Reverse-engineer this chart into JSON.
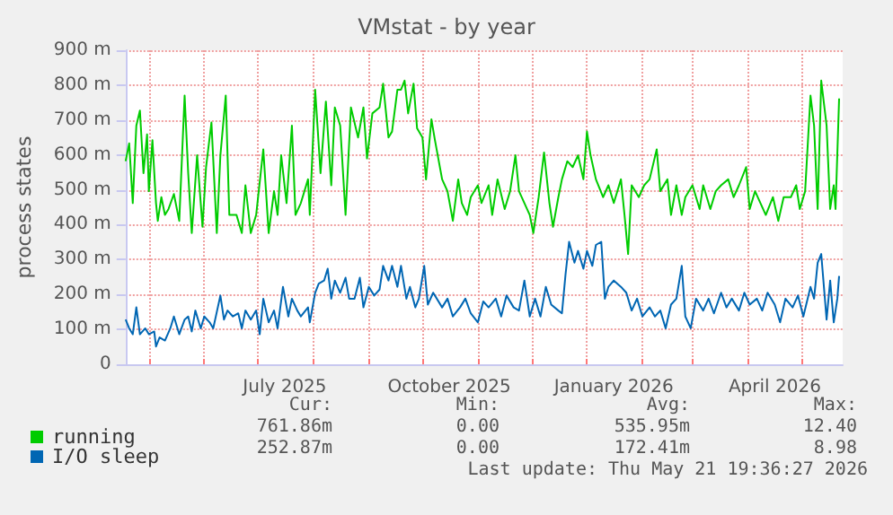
{
  "chart_data": {
    "type": "line",
    "title": "VMstat - by year",
    "ylabel": "process states",
    "xlim": [
      "2025-04-18",
      "2026-05-24"
    ],
    "ylim": [
      0,
      900
    ],
    "yticks": [
      0,
      {
        "value": 100,
        "label": "100 m"
      },
      {
        "value": 200,
        "label": "200 m"
      },
      {
        "value": 300,
        "label": "300 m"
      },
      {
        "value": 400,
        "label": "400 m"
      },
      {
        "value": 500,
        "label": "500 m"
      },
      {
        "value": 600,
        "label": "600 m"
      },
      {
        "value": 700,
        "label": "700 m"
      },
      {
        "value": 800,
        "label": "800 m"
      },
      {
        "value": 900,
        "label": "900 m"
      }
    ],
    "xticks": [
      {
        "value": "2025-05-01",
        "label": null
      },
      {
        "value": "2025-06-01",
        "label": null
      },
      {
        "value": "2025-07-01",
        "label": null
      },
      {
        "value": "2025-07-16",
        "label": "July 2025"
      },
      {
        "value": "2025-08-01",
        "label": null
      },
      {
        "value": "2025-09-01",
        "label": null
      },
      {
        "value": "2025-10-01",
        "label": null
      },
      {
        "value": "2025-10-16",
        "label": "October 2025"
      },
      {
        "value": "2025-11-01",
        "label": null
      },
      {
        "value": "2025-12-01",
        "label": null
      },
      {
        "value": "2026-01-01",
        "label": null
      },
      {
        "value": "2026-01-16",
        "label": "January 2026"
      },
      {
        "value": "2026-02-01",
        "label": null
      },
      {
        "value": "2026-03-01",
        "label": null
      },
      {
        "value": "2026-04-01",
        "label": null
      },
      {
        "value": "2026-04-16",
        "label": "April 2026"
      },
      {
        "value": "2026-05-01",
        "label": null
      }
    ],
    "grid": true,
    "legend": "bottom left",
    "marker": "none",
    "line_style": "solid",
    "annotations": [
      "Cur:",
      "Min:",
      "Avg:",
      "Max:",
      "761.86m",
      "0.00",
      "535.95m",
      "12.40",
      "252.87m",
      "0.00",
      "172.41m",
      "8.98",
      "Last update: Thu May 21 19:36:27 2026"
    ],
    "series": [
      {
        "name": "running",
        "color": "#00cc00",
        "x": [
          "2025-04-18",
          "2025-04-20",
          "2025-04-22",
          "2025-04-24",
          "2025-04-26",
          "2025-04-28",
          "2025-04-30",
          "2025-05-01",
          "2025-05-03",
          "2025-05-05",
          "2025-05-06",
          "2025-05-08",
          "2025-05-10",
          "2025-05-12",
          "2025-05-15",
          "2025-05-18",
          "2025-05-21",
          "2025-05-23",
          "2025-05-25",
          "2025-05-28",
          "2025-05-31",
          "2025-06-02",
          "2025-06-05",
          "2025-06-08",
          "2025-06-10",
          "2025-06-13",
          "2025-06-15",
          "2025-06-19",
          "2025-06-22",
          "2025-06-24",
          "2025-06-27",
          "2025-06-30",
          "2025-07-04",
          "2025-07-07",
          "2025-07-10",
          "2025-07-12",
          "2025-07-14",
          "2025-07-17",
          "2025-07-20",
          "2025-07-22",
          "2025-07-25",
          "2025-07-29",
          "2025-07-30",
          "2025-08-02",
          "2025-08-05",
          "2025-08-08",
          "2025-08-11",
          "2025-08-13",
          "2025-08-16",
          "2025-08-19",
          "2025-08-22",
          "2025-08-26",
          "2025-08-29",
          "2025-08-31",
          "2025-09-03",
          "2025-09-07",
          "2025-09-09",
          "2025-09-12",
          "2025-09-14",
          "2025-09-17",
          "2025-09-19",
          "2025-09-21",
          "2025-09-23",
          "2025-09-26",
          "2025-09-28",
          "2025-10-01",
          "2025-10-03",
          "2025-10-06",
          "2025-10-08",
          "2025-10-12",
          "2025-10-15",
          "2025-10-18",
          "2025-10-21",
          "2025-10-23",
          "2025-10-26",
          "2025-10-28",
          "2025-11-01",
          "2025-11-03",
          "2025-11-07",
          "2025-11-09",
          "2025-11-12",
          "2025-11-16",
          "2025-11-19",
          "2025-11-22",
          "2025-11-24",
          "2025-11-27",
          "2025-11-30",
          "2025-12-02",
          "2025-12-05",
          "2025-12-08",
          "2025-12-11",
          "2025-12-13",
          "2025-12-16",
          "2025-12-18",
          "2025-12-21",
          "2025-12-24",
          "2025-12-27",
          "2025-12-30",
          "2026-01-01",
          "2026-01-03",
          "2026-01-06",
          "2026-01-10",
          "2026-01-13",
          "2026-01-16",
          "2026-01-20",
          "2026-01-22",
          "2026-01-24",
          "2026-01-26",
          "2026-01-30",
          "2026-02-02",
          "2026-02-05",
          "2026-02-09",
          "2026-02-11",
          "2026-02-15",
          "2026-02-17",
          "2026-02-20",
          "2026-02-23",
          "2026-02-25",
          "2026-03-01",
          "2026-03-05",
          "2026-03-07",
          "2026-03-11",
          "2026-03-14",
          "2026-03-17",
          "2026-03-21",
          "2026-03-24",
          "2026-03-27",
          "2026-03-31",
          "2026-04-02",
          "2026-04-05",
          "2026-04-08",
          "2026-04-11",
          "2026-04-15",
          "2026-04-18",
          "2026-04-21",
          "2026-04-25",
          "2026-04-28",
          "2026-04-30",
          "2026-05-03",
          "2026-05-06",
          "2026-05-08",
          "2026-05-10",
          "2026-05-12",
          "2026-05-15",
          "2026-05-17",
          "2026-05-19",
          "2026-05-20",
          "2026-05-22"
        ],
        "values": [
          582,
          633,
          462,
          684,
          727,
          548,
          659,
          496,
          642,
          462,
          411,
          479,
          428,
          445,
          488,
          411,
          770,
          548,
          376,
          599,
          394,
          565,
          693,
          376,
          599,
          770,
          428,
          428,
          376,
          513,
          376,
          428,
          616,
          376,
          496,
          428,
          599,
          462,
          684,
          428,
          462,
          530,
          428,
          787,
          548,
          753,
          513,
          736,
          684,
          428,
          736,
          650,
          736,
          590,
          719,
          736,
          804,
          650,
          667,
          787,
          787,
          813,
          719,
          804,
          676,
          650,
          530,
          702,
          642,
          530,
          496,
          411,
          530,
          462,
          428,
          479,
          513,
          462,
          513,
          428,
          530,
          445,
          496,
          599,
          496,
          462,
          428,
          376,
          479,
          607,
          462,
          394,
          479,
          530,
          582,
          565,
          599,
          530,
          667,
          599,
          530,
          479,
          513,
          462,
          530,
          428,
          316,
          513,
          479,
          513,
          530,
          616,
          496,
          530,
          428,
          513,
          428,
          479,
          513,
          445,
          513,
          445,
          496,
          513,
          530,
          479,
          513,
          565,
          445,
          496,
          462,
          428,
          479,
          411,
          479,
          479,
          513,
          445,
          496,
          770,
          684,
          445,
          813,
          684,
          445,
          513,
          445,
          762
        ]
      },
      {
        "name": "I/O sleep",
        "color": "#0066b3",
        "x": [
          "2025-04-18",
          "2025-04-20",
          "2025-04-22",
          "2025-04-24",
          "2025-04-26",
          "2025-04-29",
          "2025-05-01",
          "2025-05-04",
          "2025-05-05",
          "2025-05-07",
          "2025-05-10",
          "2025-05-13",
          "2025-05-15",
          "2025-05-18",
          "2025-05-21",
          "2025-05-23",
          "2025-05-25",
          "2025-05-27",
          "2025-05-30",
          "2025-06-01",
          "2025-06-04",
          "2025-06-06",
          "2025-06-10",
          "2025-06-12",
          "2025-06-14",
          "2025-06-17",
          "2025-06-20",
          "2025-06-22",
          "2025-06-24",
          "2025-06-27",
          "2025-06-30",
          "2025-07-02",
          "2025-07-04",
          "2025-07-07",
          "2025-07-10",
          "2025-07-12",
          "2025-07-15",
          "2025-07-18",
          "2025-07-20",
          "2025-07-23",
          "2025-07-25",
          "2025-07-29",
          "2025-07-30",
          "2025-08-02",
          "2025-08-04",
          "2025-08-07",
          "2025-08-09",
          "2025-08-11",
          "2025-08-13",
          "2025-08-16",
          "2025-08-19",
          "2025-08-21",
          "2025-08-24",
          "2025-08-27",
          "2025-08-29",
          "2025-09-01",
          "2025-09-04",
          "2025-09-07",
          "2025-09-09",
          "2025-09-12",
          "2025-09-14",
          "2025-09-17",
          "2025-09-19",
          "2025-09-22",
          "2025-09-24",
          "2025-09-27",
          "2025-09-29",
          "2025-10-02",
          "2025-10-04",
          "2025-10-07",
          "2025-10-12",
          "2025-10-15",
          "2025-10-18",
          "2025-10-22",
          "2025-10-25",
          "2025-10-28",
          "2025-11-01",
          "2025-11-04",
          "2025-11-07",
          "2025-11-11",
          "2025-11-14",
          "2025-11-17",
          "2025-11-21",
          "2025-11-24",
          "2025-11-27",
          "2025-11-30",
          "2025-12-03",
          "2025-12-06",
          "2025-12-09",
          "2025-12-12",
          "2025-12-16",
          "2025-12-18",
          "2025-12-20",
          "2025-12-22",
          "2025-12-25",
          "2025-12-27",
          "2025-12-30",
          "2026-01-01",
          "2026-01-04",
          "2026-01-06",
          "2026-01-09",
          "2026-01-11",
          "2026-01-13",
          "2026-01-16",
          "2026-01-20",
          "2026-01-23",
          "2026-01-26",
          "2026-01-29",
          "2026-02-01",
          "2026-02-05",
          "2026-02-08",
          "2026-02-11",
          "2026-02-14",
          "2026-02-17",
          "2026-02-20",
          "2026-02-23",
          "2026-02-25",
          "2026-02-28",
          "2026-03-03",
          "2026-03-07",
          "2026-03-10",
          "2026-03-13",
          "2026-03-17",
          "2026-03-20",
          "2026-03-23",
          "2026-03-27",
          "2026-03-30",
          "2026-04-02",
          "2026-04-06",
          "2026-04-09",
          "2026-04-12",
          "2026-04-16",
          "2026-04-19",
          "2026-04-22",
          "2026-04-26",
          "2026-04-29",
          "2026-05-02",
          "2026-05-06",
          "2026-05-08",
          "2026-05-10",
          "2026-05-12",
          "2026-05-15",
          "2026-05-17",
          "2026-05-19",
          "2026-05-21",
          "2026-05-22"
        ],
        "values": [
          128,
          103,
          86,
          163,
          86,
          103,
          86,
          94,
          51,
          77,
          68,
          103,
          137,
          86,
          128,
          137,
          94,
          154,
          103,
          137,
          120,
          103,
          197,
          128,
          154,
          137,
          146,
          103,
          154,
          128,
          154,
          86,
          188,
          120,
          154,
          103,
          222,
          137,
          188,
          154,
          137,
          163,
          120,
          205,
          231,
          240,
          274,
          188,
          240,
          205,
          248,
          188,
          188,
          248,
          163,
          222,
          197,
          214,
          282,
          240,
          282,
          222,
          282,
          188,
          222,
          163,
          188,
          282,
          171,
          205,
          163,
          188,
          137,
          163,
          188,
          146,
          120,
          180,
          163,
          188,
          137,
          197,
          163,
          154,
          240,
          137,
          188,
          137,
          222,
          171,
          154,
          146,
          257,
          351,
          291,
          325,
          274,
          325,
          282,
          342,
          351,
          188,
          222,
          240,
          222,
          205,
          154,
          188,
          137,
          163,
          137,
          154,
          103,
          171,
          188,
          282,
          137,
          103,
          188,
          154,
          188,
          146,
          205,
          163,
          188,
          154,
          205,
          171,
          188,
          154,
          205,
          171,
          120,
          188,
          163,
          197,
          137,
          222,
          188,
          291,
          316,
          128,
          240,
          120,
          188,
          253
        ]
      }
    ]
  }
}
